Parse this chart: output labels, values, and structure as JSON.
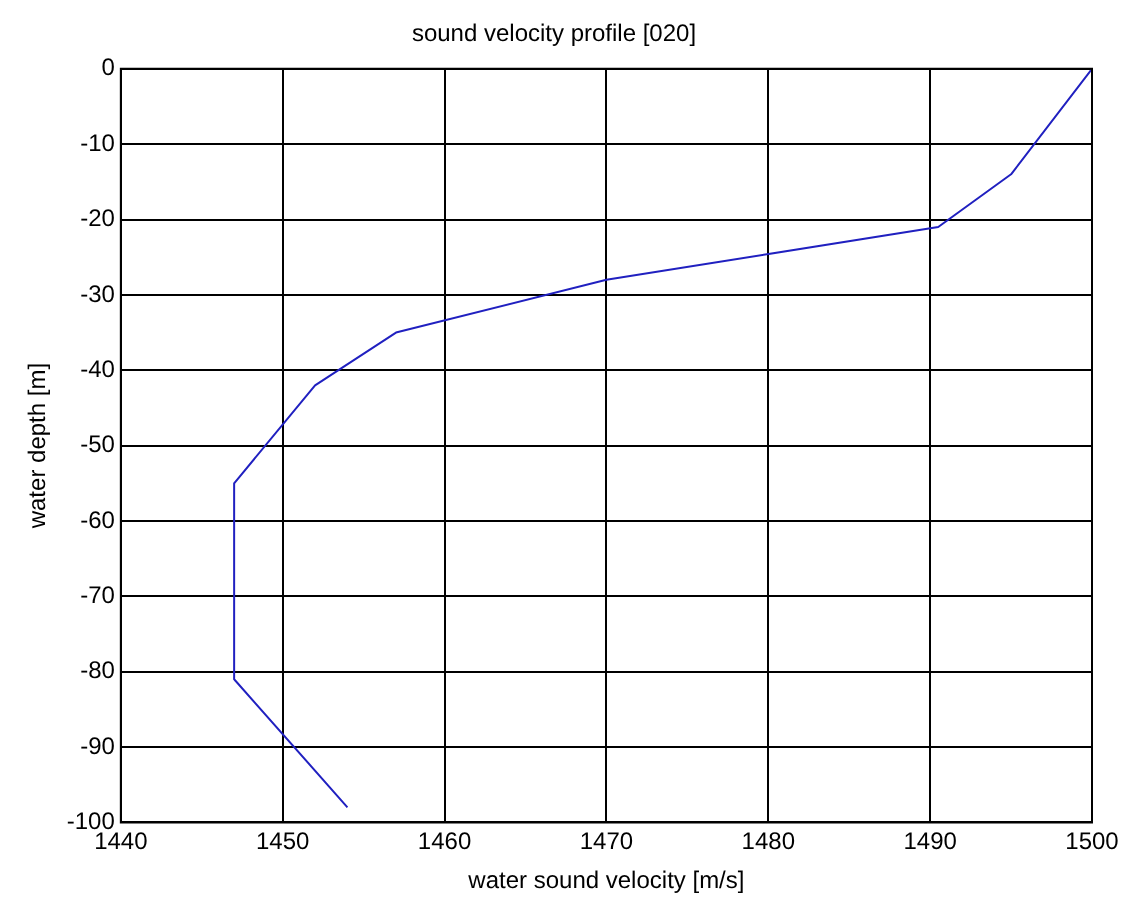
{
  "chart_data": {
    "type": "line",
    "title": "sound velocity profile [020]",
    "xlabel": "water sound velocity [m/s]",
    "ylabel": "water depth [m]",
    "x": [
      1500,
      1495,
      1490.5,
      1470,
      1457,
      1452,
      1447,
      1447,
      1454
    ],
    "series": [
      {
        "color": "#2020c0",
        "values": [
          0,
          -14,
          -21,
          -28,
          -35,
          -42,
          -55,
          -81,
          -98
        ]
      }
    ],
    "xlim": [
      1440,
      1500
    ],
    "xticks": [
      1440,
      1450,
      1460,
      1470,
      1480,
      1490,
      1500
    ],
    "ylim": [
      -100,
      0
    ],
    "yticks": [
      -100,
      -90,
      -80,
      -70,
      -60,
      -50,
      -40,
      -30,
      -20,
      -10,
      0
    ],
    "grid": true,
    "legend": false,
    "marker": "none",
    "line_style": "solid"
  }
}
